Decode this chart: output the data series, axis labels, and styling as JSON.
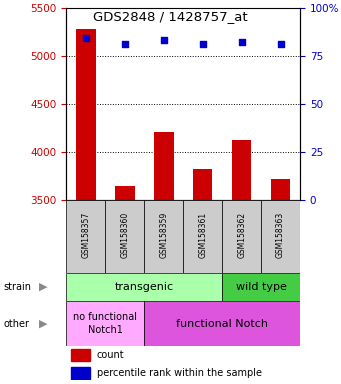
{
  "title": "GDS2848 / 1428757_at",
  "samples": [
    "GSM158357",
    "GSM158360",
    "GSM158359",
    "GSM158361",
    "GSM158362",
    "GSM158363"
  ],
  "counts": [
    5280,
    3640,
    4200,
    3820,
    4120,
    3720
  ],
  "percentiles": [
    84,
    81,
    83,
    81,
    82,
    81
  ],
  "ylim_left": [
    3500,
    5500
  ],
  "ylim_right": [
    0,
    100
  ],
  "yticks_left": [
    3500,
    4000,
    4500,
    5000,
    5500
  ],
  "yticks_right": [
    0,
    25,
    50,
    75,
    100
  ],
  "bar_color": "#cc0000",
  "dot_color": "#0000cc",
  "bar_width": 0.5,
  "strain_transgenic_color": "#aaffaa",
  "strain_wildtype_color": "#44cc44",
  "other_nofunc_color": "#ffaaff",
  "other_func_color": "#dd55dd",
  "xlabels_bg": "#cccccc",
  "legend_items": [
    {
      "color": "#cc0000",
      "label": "count"
    },
    {
      "color": "#0000cc",
      "label": "percentile rank within the sample"
    }
  ]
}
